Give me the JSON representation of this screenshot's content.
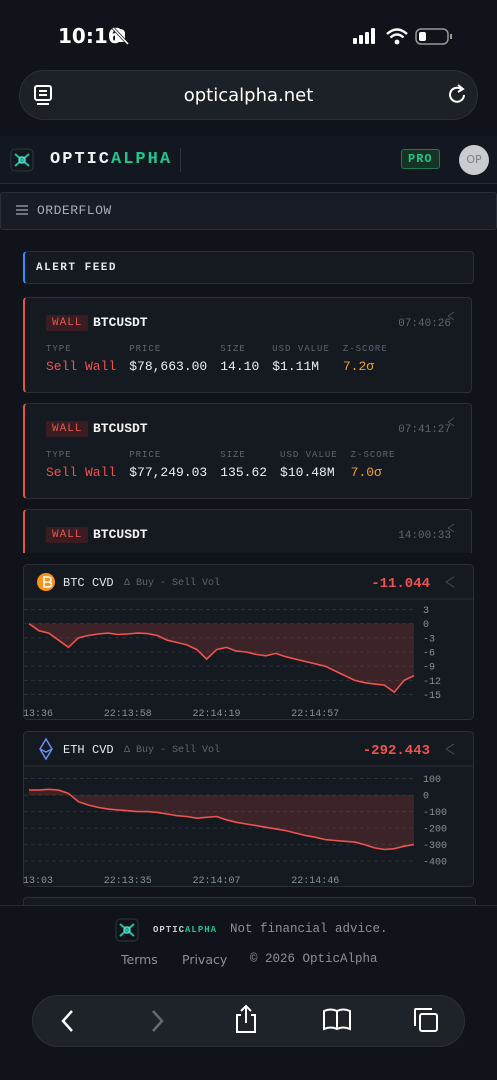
{
  "status_bar": {
    "time": "10:16"
  },
  "browser": {
    "url": "opticalpha.net"
  },
  "header": {
    "brand_1": "OPTIC",
    "brand_2": "ALPHA",
    "badge": "PRO",
    "avatar": "OP"
  },
  "nav": {
    "section": "ORDERFLOW"
  },
  "feed": {
    "title": "ALERT FEED",
    "alerts": [
      {
        "tag": "WALL",
        "symbol": "BTCUSDT",
        "time": "07:40:26",
        "fields": [
          {
            "label": "TYPE",
            "value": "Sell Wall"
          },
          {
            "label": "PRICE",
            "value": "$78,663.00"
          },
          {
            "label": "SIZE",
            "value": "14.10"
          },
          {
            "label": "USD VALUE",
            "value": "$1.11M"
          },
          {
            "label": "Z-SCORE",
            "value": "7.2σ"
          }
        ]
      },
      {
        "tag": "WALL",
        "symbol": "BTCUSDT",
        "time": "07:41:27",
        "fields": [
          {
            "label": "TYPE",
            "value": "Sell Wall"
          },
          {
            "label": "PRICE",
            "value": "$77,249.03"
          },
          {
            "label": "SIZE",
            "value": "135.62"
          },
          {
            "label": "USD VALUE",
            "value": "$10.48M"
          },
          {
            "label": "Z-SCORE",
            "value": "7.0σ"
          }
        ]
      },
      {
        "tag": "WALL",
        "symbol": "BTCUSDT",
        "time": "14:00:33"
      }
    ]
  },
  "panels": [
    {
      "symbol": "BTC",
      "metric": "CVD",
      "subtitle": "Δ Buy - Sell Vol",
      "latest": "-11.044",
      "chart_data": {
        "type": "line",
        "color": "#ef5350",
        "categories": [
          "13:36",
          null,
          null,
          null,
          null,
          null,
          null,
          null,
          null,
          null,
          "22:13:58",
          null,
          null,
          null,
          null,
          null,
          null,
          null,
          null,
          "22:14:19",
          null,
          null,
          null,
          null,
          null,
          null,
          null,
          null,
          null,
          "22:14:57",
          null,
          null,
          null,
          null,
          null,
          null,
          null,
          null,
          null,
          null
        ],
        "values": [
          0,
          -1.5,
          -2,
          -3.5,
          -5,
          -3,
          -2.5,
          -2.2,
          -2,
          -2.3,
          -2.2,
          -2,
          -2.1,
          -2.5,
          -3.5,
          -4,
          -4.5,
          -5.5,
          -7.5,
          -5.5,
          -5,
          -5.8,
          -6,
          -6.5,
          -6.8,
          -6.3,
          -7,
          -7.5,
          -8,
          -8.5,
          -9,
          -10,
          -11,
          -12,
          -12.5,
          -12.8,
          -13,
          -14.5,
          -12,
          -11
        ],
        "ylim": [
          -17,
          5
        ],
        "yticks": [
          3,
          0,
          -3,
          -6,
          -9,
          -12,
          -15
        ],
        "grid": true
      }
    },
    {
      "symbol": "ETH",
      "metric": "CVD",
      "subtitle": "Δ Buy - Sell Vol",
      "latest": "-292.443",
      "chart_data": {
        "type": "line",
        "color": "#ef5350",
        "categories": [
          "13:03",
          null,
          null,
          null,
          null,
          null,
          null,
          null,
          null,
          null,
          "22:13:35",
          null,
          null,
          null,
          null,
          null,
          null,
          null,
          null,
          "22:14:07",
          null,
          null,
          null,
          null,
          null,
          null,
          null,
          null,
          null,
          "22:14:46",
          null,
          null,
          null,
          null,
          null,
          null,
          null,
          null,
          null,
          null
        ],
        "values": [
          30,
          30,
          35,
          30,
          10,
          -40,
          -60,
          -75,
          -85,
          -90,
          -95,
          -100,
          -100,
          -105,
          -115,
          -125,
          -130,
          -140,
          -135,
          -130,
          -150,
          -165,
          -175,
          -185,
          -195,
          -205,
          -215,
          -230,
          -245,
          -255,
          -270,
          -275,
          -280,
          -285,
          -300,
          -320,
          -330,
          -325,
          -310,
          -300
        ],
        "ylim": [
          -460,
          170
        ],
        "yticks": [
          100,
          0,
          -100,
          -200,
          -300,
          -400
        ],
        "grid": true
      }
    }
  ],
  "footer": {
    "brand_1": "OPTIC",
    "brand_2": "ALPHA",
    "disclaimer": "Not financial advice.",
    "links": [
      "Terms",
      "Privacy"
    ],
    "copyright": "© 2026 OpticAlpha"
  }
}
